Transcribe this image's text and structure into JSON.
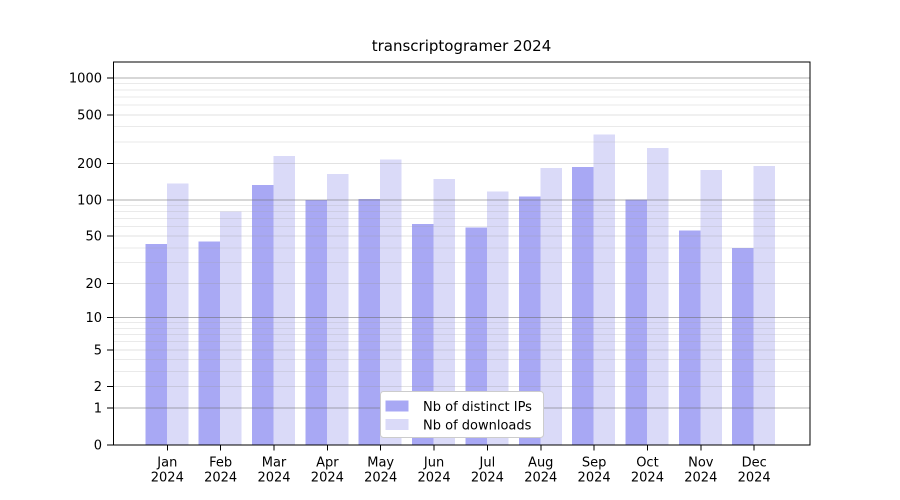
{
  "chart_data": {
    "type": "bar",
    "title": "transcriptogramer 2024",
    "categories": [
      "Jan",
      "Feb",
      "Mar",
      "Apr",
      "May",
      "Jun",
      "Jul",
      "Aug",
      "Sep",
      "Oct",
      "Nov",
      "Dec"
    ],
    "year_label": "2024",
    "series": [
      {
        "name": "Nb of distinct IPs",
        "color": "#a8a8f4",
        "values": [
          43,
          45,
          133,
          100,
          102,
          63,
          59,
          107,
          186,
          101,
          56,
          40
        ]
      },
      {
        "name": "Nb of downloads",
        "color": "#dadaf8",
        "values": [
          137,
          80,
          230,
          164,
          215,
          148,
          117,
          183,
          345,
          266,
          176,
          190
        ]
      }
    ],
    "y_ticks": [
      1000,
      500,
      200,
      100,
      50,
      20,
      10,
      5,
      2,
      1,
      0
    ],
    "y_scale": "log10(1+x)",
    "ylim": [
      0,
      1350
    ],
    "grid": true,
    "legend_position": "lower center"
  }
}
